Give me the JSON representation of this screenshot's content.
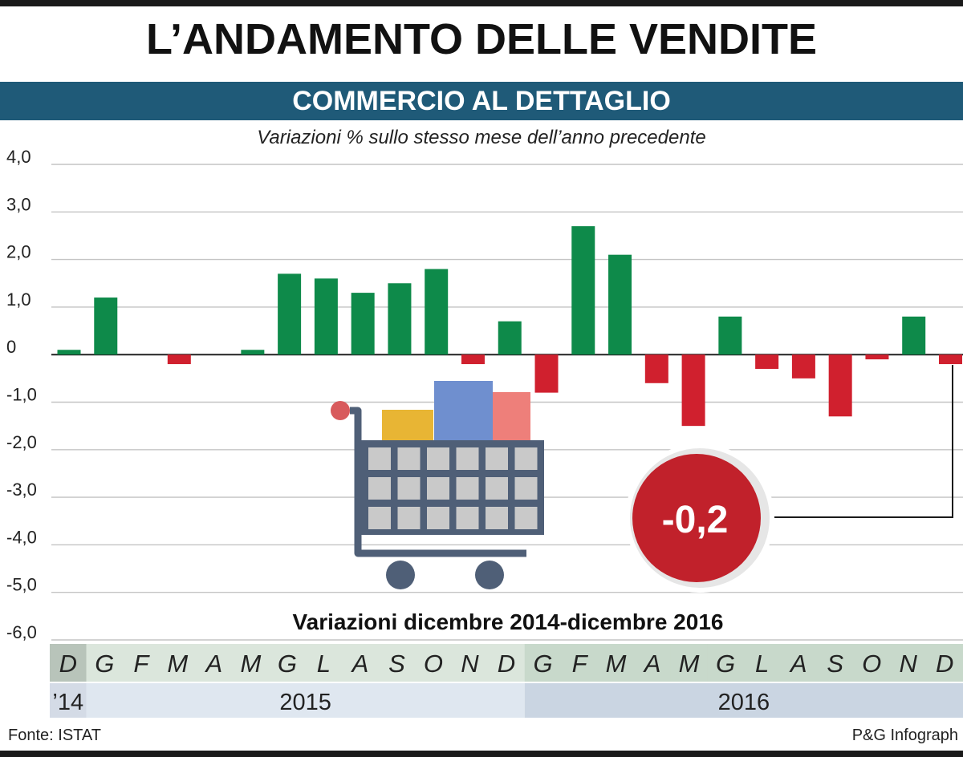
{
  "header": {
    "title": "L’ANDAMENTO DELLE VENDITE",
    "subtitle": "COMMERCIO AL DETTAGLIO",
    "caption": "Variazioni % sullo stesso mese dell’anno precedente"
  },
  "chart_data": {
    "type": "bar",
    "title": "Variazioni dicembre 2014-dicembre 2016",
    "ylim": [
      -6,
      4
    ],
    "yticks": [
      "4,0",
      "3,0",
      "2,0",
      "1,0",
      "0",
      "-1,0",
      "-2,0",
      "-3,0",
      "-4,0",
      "-5,0",
      "-6,0"
    ],
    "categories": [
      "D",
      "G",
      "F",
      "M",
      "A",
      "M",
      "G",
      "L",
      "A",
      "S",
      "O",
      "N",
      "D",
      "G",
      "F",
      "M",
      "A",
      "M",
      "G",
      "L",
      "A",
      "S",
      "O",
      "N",
      "D"
    ],
    "values": [
      0.1,
      1.2,
      0.0,
      -0.2,
      0.0,
      0.1,
      1.7,
      1.6,
      1.3,
      1.5,
      1.8,
      -0.2,
      0.7,
      -0.8,
      2.7,
      2.1,
      -0.6,
      -1.5,
      0.8,
      -0.3,
      -0.5,
      -1.3,
      -0.1,
      0.8,
      -0.2
    ],
    "years": [
      {
        "label": "’14"
      },
      {
        "label": "2015"
      },
      {
        "label": "2016"
      }
    ],
    "annotation": "-0,2",
    "grid": true,
    "colors": {
      "positive": "#0e8a4a",
      "negative": "#d0202e"
    }
  },
  "footer": {
    "source": "Fonte: ISTAT",
    "credit": "P&G Infograph"
  }
}
